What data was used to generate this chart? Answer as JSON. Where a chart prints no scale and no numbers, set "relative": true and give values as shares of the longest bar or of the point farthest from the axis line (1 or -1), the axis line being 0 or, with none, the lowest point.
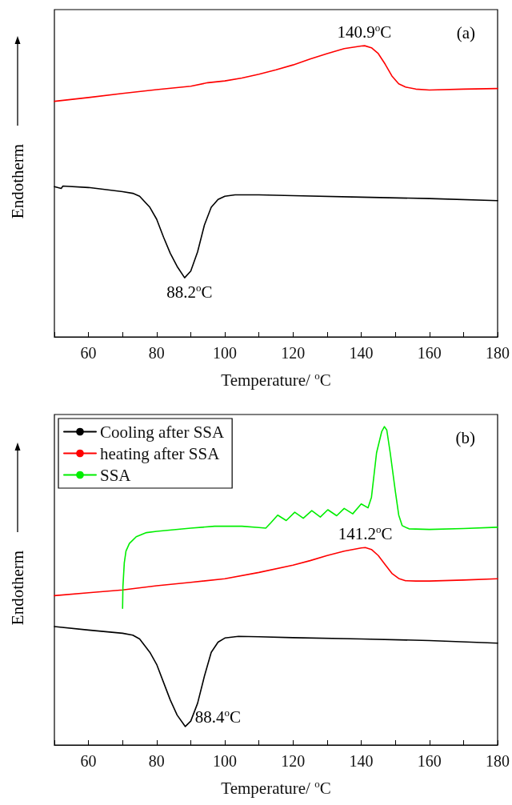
{
  "chart_data": [
    {
      "type": "line",
      "relative": true,
      "xlabel": "Temperature/ $^{o}$C",
      "ylabel": "Endotherm",
      "xlim": [
        50,
        180
      ],
      "xticks": [
        {
          "value": 50,
          "label": null
        },
        60,
        {
          "value": 70,
          "label": null
        },
        80,
        {
          "value": 90,
          "label": null
        },
        100,
        {
          "value": 110,
          "label": null
        },
        120,
        {
          "value": 130,
          "label": null
        },
        140,
        {
          "value": 150,
          "label": null
        },
        160,
        {
          "value": 170,
          "label": null
        },
        180
      ],
      "grid": false,
      "legend": false,
      "marker": "none",
      "line_style": "solid",
      "annotations": [
        {
          "text": "140.9$^{o}$C",
          "x": 140.9,
          "y": 1.0
        },
        {
          "text": "88.2$^{o}$C",
          "x": 88.2,
          "y": 0.203
        },
        "(a)"
      ],
      "series": [
        {
          "color": "#ff0000",
          "x": [
            50,
            60,
            70,
            80,
            90,
            95,
            100,
            105,
            110,
            115,
            120,
            125,
            130,
            135,
            140,
            141,
            143,
            145,
            147,
            149,
            151,
            153,
            156,
            160,
            170,
            180
          ],
          "values": [
            0.809,
            0.822,
            0.836,
            0.849,
            0.861,
            0.873,
            0.879,
            0.889,
            0.902,
            0.917,
            0.934,
            0.954,
            0.973,
            0.99,
            0.999,
            1.0,
            0.993,
            0.973,
            0.937,
            0.896,
            0.869,
            0.858,
            0.851,
            0.848,
            0.851,
            0.853
          ]
        },
        {
          "color": "#000000",
          "x": [
            50,
            52,
            52.5,
            60,
            70,
            73,
            75,
            78,
            80,
            82,
            84,
            86,
            88.2,
            90,
            92,
            94,
            96,
            98,
            100,
            103,
            110,
            120,
            140,
            160,
            180
          ],
          "values": [
            0.516,
            0.51,
            0.518,
            0.513,
            0.499,
            0.493,
            0.483,
            0.445,
            0.404,
            0.343,
            0.287,
            0.242,
            0.203,
            0.226,
            0.292,
            0.384,
            0.445,
            0.472,
            0.483,
            0.488,
            0.488,
            0.485,
            0.48,
            0.475,
            0.468
          ]
        }
      ]
    },
    {
      "type": "line",
      "relative": true,
      "xlabel": "Temperature/ $^{o}$C",
      "ylabel": "Endotherm",
      "xlim": [
        50,
        180
      ],
      "xticks": [
        {
          "value": 50,
          "label": null
        },
        60,
        {
          "value": 70,
          "label": null
        },
        80,
        {
          "value": 90,
          "label": null
        },
        100,
        {
          "value": 110,
          "label": null
        },
        120,
        {
          "value": 130,
          "label": null
        },
        140,
        {
          "value": 150,
          "label": null
        },
        160,
        {
          "value": 170,
          "label": null
        },
        180
      ],
      "grid": false,
      "legend": "top left",
      "marker": "none",
      "line_style": "solid",
      "annotations": [
        {
          "text": "141.2$^{o}$C",
          "x": 141.2,
          "y": 0.62
        },
        {
          "text": "88.4$^{o}$C",
          "x": 88.4,
          "y": 0.058
        },
        "(b)"
      ],
      "series": [
        {
          "name": "Cooling after SSA",
          "color": "#000000",
          "x": [
            50,
            60,
            70,
            73,
            75,
            78,
            80,
            82,
            84,
            86,
            88.4,
            90,
            92,
            94,
            96,
            98,
            100,
            104,
            110,
            120,
            140,
            160,
            180
          ],
          "values": [
            0.372,
            0.361,
            0.351,
            0.345,
            0.333,
            0.291,
            0.253,
            0.197,
            0.141,
            0.094,
            0.058,
            0.075,
            0.131,
            0.216,
            0.291,
            0.323,
            0.336,
            0.341,
            0.34,
            0.337,
            0.333,
            0.328,
            0.32
          ]
        },
        {
          "name": "heating after SSA",
          "color": "#ff0000",
          "x": [
            50,
            60,
            70,
            80,
            90,
            100,
            110,
            120,
            125,
            130,
            135,
            140,
            141.2,
            143,
            145,
            147,
            149,
            151,
            153,
            156,
            160,
            170,
            180
          ],
          "values": [
            0.469,
            0.478,
            0.487,
            0.5,
            0.511,
            0.522,
            0.542,
            0.565,
            0.579,
            0.595,
            0.609,
            0.619,
            0.62,
            0.614,
            0.595,
            0.567,
            0.539,
            0.523,
            0.516,
            0.515,
            0.515,
            0.518,
            0.522
          ]
        },
        {
          "name": "SSA",
          "color": "#00ee00",
          "x": [
            70,
            70.1,
            70.5,
            71,
            72,
            74,
            77,
            80,
            90,
            97,
            105,
            110,
            112,
            113.5,
            115.5,
            118,
            120.5,
            123,
            125.5,
            128,
            130.2,
            132.8,
            135,
            137.5,
            140,
            142,
            143,
            144.5,
            146,
            146.8,
            147.5,
            148.5,
            150,
            151,
            152,
            154,
            160,
            170,
            180
          ],
          "values": [
            0.429,
            0.497,
            0.572,
            0.609,
            0.633,
            0.654,
            0.667,
            0.671,
            0.681,
            0.687,
            0.687,
            0.683,
            0.681,
            0.698,
            0.722,
            0.705,
            0.731,
            0.712,
            0.736,
            0.716,
            0.739,
            0.72,
            0.743,
            0.726,
            0.757,
            0.745,
            0.778,
            0.918,
            0.984,
            1.0,
            0.989,
            0.918,
            0.797,
            0.722,
            0.689,
            0.679,
            0.677,
            0.68,
            0.684
          ]
        }
      ]
    }
  ]
}
